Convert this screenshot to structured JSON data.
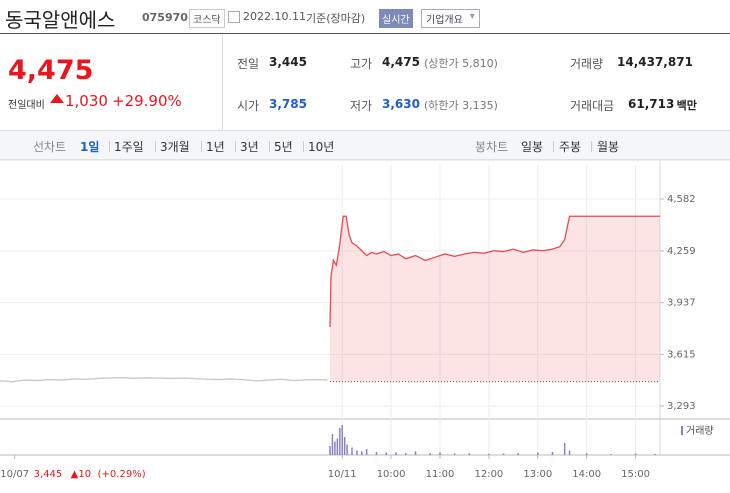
{
  "header": {
    "name": "동국알앤에스",
    "code": "075970",
    "market": "코스닥",
    "date": "2022.10.11",
    "basis": "기준(장마감)",
    "realtime": "실시간",
    "company_info": "기업개요"
  },
  "quote": {
    "price": "4,475",
    "change_label": "전일대비",
    "change": "1,030",
    "change_pct": "+29.90%"
  },
  "summary": [
    [
      {
        "label": "전일",
        "value": "3,445"
      },
      {
        "label": "고가",
        "value": "4,475",
        "note": "(상한가 5,810)"
      },
      {
        "label": "거래량",
        "value": "14,437,871"
      }
    ],
    [
      {
        "label": "시가",
        "value": "3,785"
      },
      {
        "label": "저가",
        "value": "3,630",
        "note": "(하한가 3,135)"
      },
      {
        "label": "거래대금",
        "value": "61,713",
        "unit": "백만"
      }
    ]
  ],
  "tabs": {
    "line_label": "선차트",
    "line": [
      "1일",
      "1주일",
      "3개월",
      "1년",
      "3년",
      "5년",
      "10년"
    ],
    "candle_label": "봉차트",
    "candle": [
      "일봉",
      "주봉",
      "월봉"
    ]
  },
  "chart_data": {
    "type": "line",
    "xlim": [
      2.0,
      15.5
    ],
    "xticks": [
      {
        "value": 2.3,
        "label": "10/07"
      },
      {
        "value": 9.0,
        "label": "10/11"
      },
      {
        "value": 10,
        "label": "10:00"
      },
      {
        "value": 11,
        "label": "11:00"
      },
      {
        "value": 12,
        "label": "12:00"
      },
      {
        "value": 13,
        "label": "13:00"
      },
      {
        "value": 14,
        "label": "14:00"
      },
      {
        "value": 15,
        "label": "15:00"
      }
    ],
    "ylim": [
      3225,
      4794
    ],
    "yticks": [
      {
        "value": 3293,
        "label": "3,293"
      },
      {
        "value": 3615,
        "label": "3,615"
      },
      {
        "value": 3937,
        "label": "3,937"
      },
      {
        "value": 4259,
        "label": "4,259"
      },
      {
        "value": 4582,
        "label": "4,582"
      }
    ],
    "grid": true,
    "reference": 3445,
    "prev_day_close": "3,445",
    "prev_day_change": "▲10",
    "prev_day_pct": "(+0.29%)",
    "series": [
      {
        "color": "#c8c8c8",
        "fill": false,
        "x": [
          2.0,
          2.25,
          2.5,
          2.75,
          3.0,
          3.25,
          3.5,
          3.75,
          4.0,
          4.25,
          4.5,
          4.75,
          5.0,
          5.25,
          5.5,
          5.75,
          6.0,
          6.25,
          6.5,
          6.75,
          7.0,
          7.25,
          7.5,
          7.75,
          8.0,
          8.25,
          8.5,
          8.7
        ],
        "values": [
          3450,
          3445,
          3455,
          3452,
          3458,
          3455,
          3462,
          3460,
          3465,
          3468,
          3470,
          3466,
          3469,
          3467,
          3465,
          3468,
          3464,
          3460,
          3458,
          3462,
          3456,
          3450,
          3455,
          3460,
          3452,
          3456,
          3458,
          3455
        ]
      },
      {
        "color": "#e8494f",
        "fill": true,
        "x": [
          8.75,
          8.77,
          8.82,
          8.88,
          8.95,
          9.02,
          9.08,
          9.14,
          9.2,
          9.3,
          9.4,
          9.5,
          9.6,
          9.7,
          9.85,
          10.0,
          10.15,
          10.3,
          10.5,
          10.7,
          10.9,
          11.1,
          11.3,
          11.5,
          11.7,
          11.9,
          12.1,
          12.3,
          12.5,
          12.7,
          12.9,
          13.1,
          13.3,
          13.45,
          13.55,
          13.65,
          14.0,
          14.5,
          15.0,
          15.5
        ],
        "values": [
          3785,
          4100,
          4200,
          4170,
          4300,
          4475,
          4475,
          4360,
          4310,
          4290,
          4260,
          4230,
          4250,
          4240,
          4255,
          4230,
          4240,
          4210,
          4230,
          4200,
          4220,
          4240,
          4225,
          4240,
          4250,
          4245,
          4260,
          4255,
          4270,
          4250,
          4265,
          4260,
          4270,
          4285,
          4330,
          4475,
          4475,
          4475,
          4475,
          4475
        ]
      }
    ],
    "volume": {
      "name": "거래량",
      "color": "#8b7fc8",
      "ylim": [
        0,
        1100000
      ],
      "x": [
        8.75,
        8.8,
        8.85,
        8.9,
        8.95,
        9.0,
        9.05,
        9.1,
        9.2,
        9.3,
        9.4,
        9.5,
        9.7,
        9.9,
        10.1,
        10.3,
        10.5,
        10.8,
        11.0,
        11.3,
        11.6,
        12.0,
        12.3,
        12.6,
        13.0,
        13.3,
        13.55,
        13.65,
        14.0,
        14.5,
        15.0,
        15.4
      ],
      "values": [
        300000,
        700000,
        450000,
        550000,
        900000,
        1000000,
        600000,
        350000,
        250000,
        150000,
        120000,
        200000,
        100000,
        80000,
        90000,
        70000,
        120000,
        60000,
        90000,
        50000,
        60000,
        40000,
        50000,
        60000,
        80000,
        100000,
        400000,
        150000,
        60000,
        30000,
        50000,
        40000
      ]
    }
  }
}
